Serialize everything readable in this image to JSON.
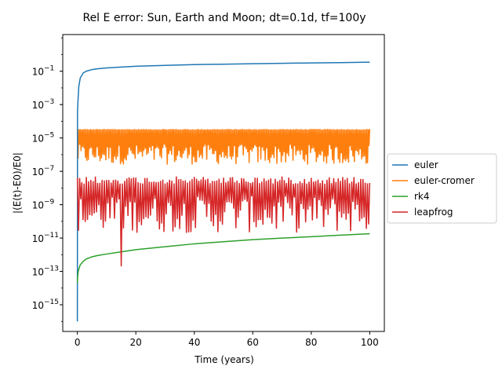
{
  "chart_data": {
    "type": "line",
    "title": "Rel E error: Sun, Earth and Moon; dt=0.1d, tf=100y",
    "xlabel": "Time (years)",
    "ylabel": "|(E(t)-E0)/E0|",
    "xlim": [
      -5,
      105
    ],
    "ylim_log10": [
      -16.6,
      1.2
    ],
    "yscale": "log",
    "grid": false,
    "legend": "outside-right",
    "x_ticks": [
      0,
      20,
      40,
      60,
      80,
      100
    ],
    "x_tick_labels": [
      "0",
      "20",
      "40",
      "60",
      "80",
      "100"
    ],
    "y_tick_exponents": [
      -15,
      -13,
      -11,
      -9,
      -7,
      -5,
      -3,
      -1
    ],
    "y_tick_labels": [
      "10",
      "10",
      "10",
      "10",
      "10",
      "10",
      "10",
      "10"
    ],
    "y_tick_superscripts": [
      "−15",
      "−13",
      "−11",
      "−9",
      "−7",
      "−5",
      "−3",
      "−1"
    ],
    "series": [
      {
        "name": "euler",
        "color": "#1f77b4",
        "x": [
          0,
          0.05,
          0.2,
          0.5,
          1,
          2,
          3,
          5,
          7,
          10,
          15,
          20,
          30,
          40,
          50,
          60,
          70,
          80,
          90,
          100
        ],
        "y": [
          1e-16,
          0.00032,
          0.0016,
          0.0126,
          0.04,
          0.079,
          0.1,
          0.126,
          0.141,
          0.158,
          0.178,
          0.2,
          0.224,
          0.251,
          0.266,
          0.282,
          0.3,
          0.316,
          0.33,
          0.35
        ]
      },
      {
        "name": "euler-cromer",
        "color": "#ff7f0e",
        "band_min": 2.5e-07,
        "band_max": 3.5e-05,
        "x_range": [
          0,
          100
        ]
      },
      {
        "name": "rk4",
        "color": "#2ca02c",
        "x": [
          0.02,
          0.1,
          0.3,
          0.6,
          1,
          2,
          3,
          5,
          7,
          10,
          15,
          20,
          30,
          40,
          50,
          60,
          70,
          80,
          90,
          100
        ],
        "y": [
          2e-14,
          5e-14,
          1e-13,
          1.6e-13,
          2.5e-13,
          4e-13,
          5.5e-13,
          7.5e-13,
          9e-13,
          1.1e-12,
          1.5e-12,
          2e-12,
          3e-12,
          4.5e-12,
          6e-12,
          8e-12,
          1e-11,
          1.2e-11,
          1.5e-11,
          1.8e-11
        ]
      },
      {
        "name": "leapfrog",
        "color": "#d62728",
        "band_min": 2e-11,
        "band_max": 5e-08,
        "x_range": [
          0,
          100
        ],
        "dips": [
          {
            "x": 0.05,
            "y": 5e-17
          },
          {
            "x": 15,
            "y": 2e-13
          },
          {
            "x": 43,
            "y": 3e-12
          },
          {
            "x": 66,
            "y": 1e-12
          },
          {
            "x": 4,
            "y": 1e-11
          },
          {
            "x": 27,
            "y": 8e-12
          },
          {
            "x": 50,
            "y": 1e-11
          },
          {
            "x": 87,
            "y": 1e-11
          }
        ]
      }
    ]
  }
}
